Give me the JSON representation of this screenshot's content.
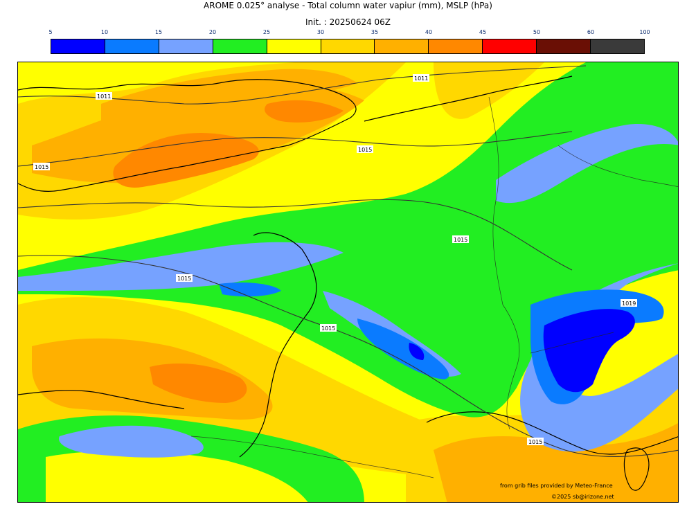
{
  "title": "AROME 0.025° analyse - Total column water vapiur (mm), MSLP (hPa)",
  "subtitle": "Init. : 20250624 06Z",
  "colorbar": {
    "ticks": [
      "5",
      "10",
      "15",
      "20",
      "25",
      "30",
      "35",
      "40",
      "45",
      "50",
      "60",
      "100"
    ],
    "colors": [
      "#0000ff",
      "#0a7bff",
      "#76a2ff",
      "#22ee22",
      "#ffff00",
      "#ffd800",
      "#ffb000",
      "#ff8800",
      "#ff0000",
      "#6a0f05",
      "#3a3a3a"
    ]
  },
  "isobars": [
    {
      "label": "1011"
    },
    {
      "label": "1011"
    },
    {
      "label": "1015"
    },
    {
      "label": "1015"
    },
    {
      "label": "1015"
    },
    {
      "label": "1015"
    },
    {
      "label": "1015"
    },
    {
      "label": "1019"
    },
    {
      "label": "1015"
    }
  ],
  "credits": {
    "line1": "from grib files provided by Meteo-France",
    "line2": "©2025 sb@irizone.net"
  }
}
